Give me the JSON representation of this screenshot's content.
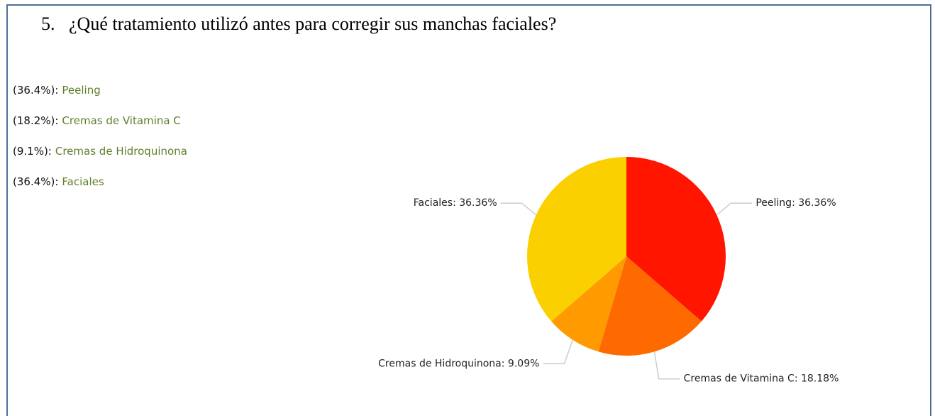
{
  "chart_data": {
    "type": "pie",
    "title": "5.   ¿Qué tratamiento utilizó antes para corregir sus manchas faciales?",
    "categories": [
      "Peeling",
      "Cremas de Vitamina C",
      "Cremas de Hidroquinona",
      "Faciales"
    ],
    "values": [
      36.36,
      18.18,
      9.09,
      36.36
    ],
    "value_labels": [
      "Peeling: 36.36%",
      "Cremas de Vitamina C: 18.18%",
      "Cremas de Hidroquinona: 9.09%",
      "Faciales: 36.36%"
    ],
    "legend_labels": [
      "(36.4%):",
      "(18.2%):",
      "(9.1%):",
      "(36.4%):"
    ],
    "colors": [
      "#ff1500",
      "#ff6a00",
      "#ff9a00",
      "#fbd000"
    ]
  }
}
